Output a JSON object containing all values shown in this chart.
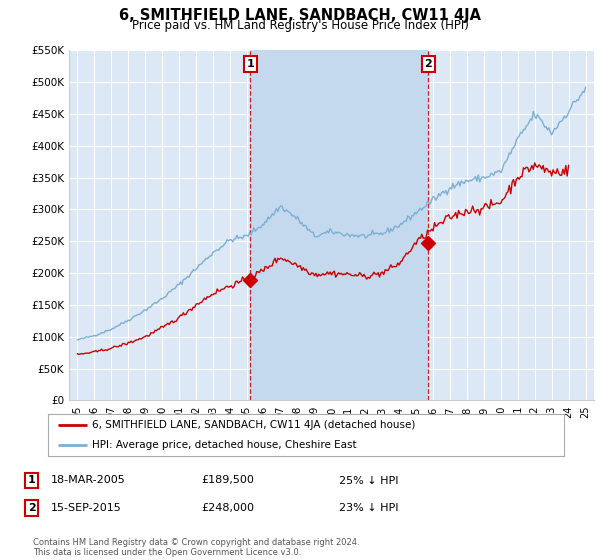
{
  "title": "6, SMITHFIELD LANE, SANDBACH, CW11 4JA",
  "subtitle": "Price paid vs. HM Land Registry's House Price Index (HPI)",
  "hpi_color": "#7bafd4",
  "price_color": "#cc0000",
  "background_color": "#ffffff",
  "plot_bg_color": "#dce8f5",
  "shaded_color": "#c5d9ee",
  "grid_color": "#ffffff",
  "ylim": [
    0,
    550000
  ],
  "yticks": [
    0,
    50000,
    100000,
    150000,
    200000,
    250000,
    300000,
    350000,
    400000,
    450000,
    500000,
    550000
  ],
  "ytick_labels": [
    "£0",
    "£50K",
    "£100K",
    "£150K",
    "£200K",
    "£250K",
    "£300K",
    "£350K",
    "£400K",
    "£450K",
    "£500K",
    "£550K"
  ],
  "xlim_start": 1994.5,
  "xlim_end": 2025.5,
  "sale1_x": 2005.21,
  "sale1_y": 189500,
  "sale1_label": "1",
  "sale1_date": "18-MAR-2005",
  "sale1_price": "£189,500",
  "sale1_hpi": "25% ↓ HPI",
  "sale2_x": 2015.71,
  "sale2_y": 248000,
  "sale2_label": "2",
  "sale2_date": "15-SEP-2015",
  "sale2_price": "£248,000",
  "sale2_hpi": "23% ↓ HPI",
  "legend_line1": "6, SMITHFIELD LANE, SANDBACH, CW11 4JA (detached house)",
  "legend_line2": "HPI: Average price, detached house, Cheshire East",
  "footnote": "Contains HM Land Registry data © Crown copyright and database right 2024.\nThis data is licensed under the Open Government Licence v3.0.",
  "xtick_years": [
    1995,
    1996,
    1997,
    1998,
    1999,
    2000,
    2001,
    2002,
    2003,
    2004,
    2005,
    2006,
    2007,
    2008,
    2009,
    2010,
    2011,
    2012,
    2013,
    2014,
    2015,
    2016,
    2017,
    2018,
    2019,
    2020,
    2021,
    2022,
    2023,
    2024,
    2025
  ],
  "hpi_years": [
    1995,
    1996,
    1997,
    1998,
    1999,
    2000,
    2001,
    2002,
    2003,
    2004,
    2005,
    2006,
    2007,
    2008,
    2009,
    2010,
    2011,
    2012,
    2013,
    2014,
    2015,
    2016,
    2017,
    2018,
    2019,
    2020,
    2021,
    2022,
    2023,
    2024,
    2025
  ],
  "hpi_vals": [
    95000,
    102000,
    112000,
    126000,
    142000,
    160000,
    182000,
    207000,
    232000,
    252000,
    258000,
    278000,
    305000,
    285000,
    258000,
    265000,
    260000,
    258000,
    262000,
    275000,
    295000,
    315000,
    335000,
    345000,
    350000,
    360000,
    410000,
    450000,
    420000,
    455000,
    490000
  ],
  "price_years": [
    1995,
    1996,
    1997,
    1998,
    1999,
    2000,
    2001,
    2002,
    2003,
    2004,
    2005,
    2006,
    2007,
    2008,
    2009,
    2010,
    2011,
    2012,
    2013,
    2014,
    2015,
    2016,
    2017,
    2018,
    2019,
    2020,
    2021,
    2022,
    2023,
    2024
  ],
  "price_vals": [
    72000,
    76000,
    82000,
    90000,
    100000,
    114000,
    130000,
    150000,
    168000,
    180000,
    189500,
    205000,
    225000,
    212000,
    198000,
    200000,
    198000,
    195000,
    200000,
    215000,
    248000,
    270000,
    288000,
    298000,
    302000,
    312000,
    352000,
    370000,
    358000,
    362000
  ]
}
